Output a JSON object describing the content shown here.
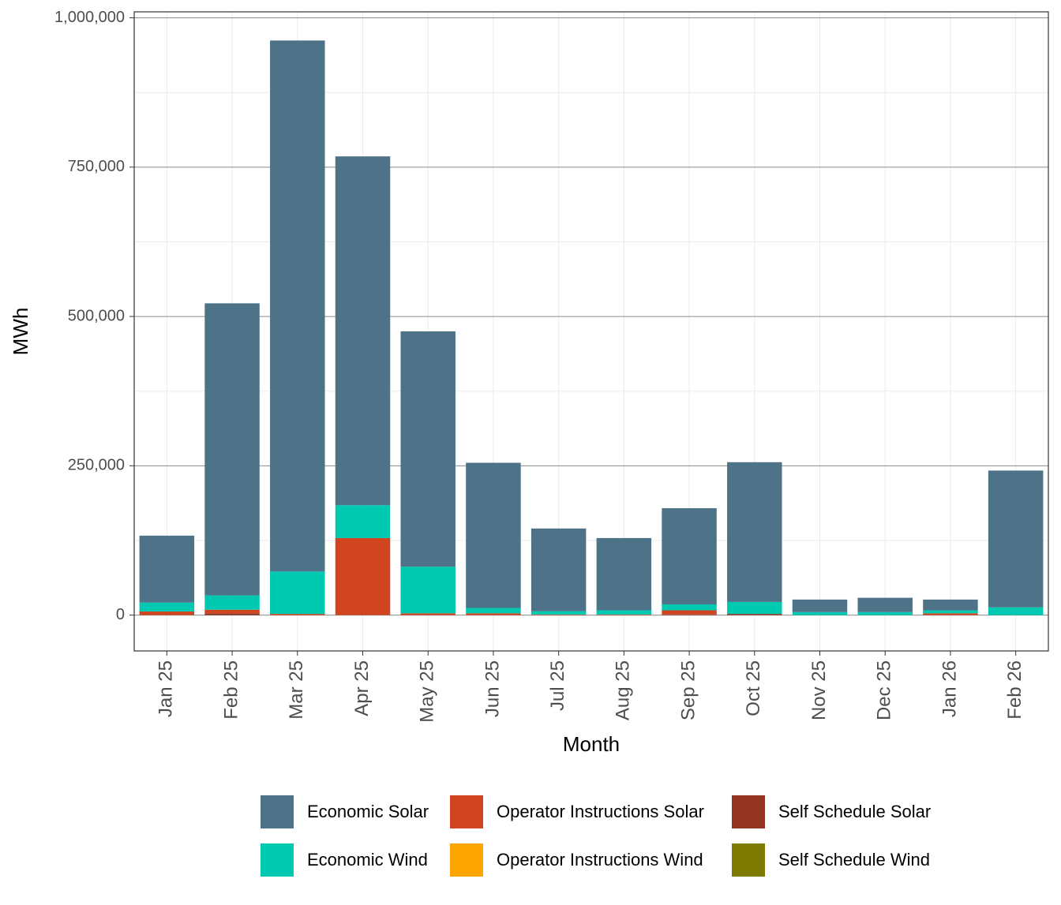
{
  "chart_data": {
    "type": "stacked-bar",
    "x_label": "Month",
    "y_label": "MWh",
    "categories": [
      "Jan 25",
      "Feb 25",
      "Mar 25",
      "Apr 25",
      "May 25",
      "Jun 25",
      "Jul 25",
      "Aug 25",
      "Sep 25",
      "Oct 25",
      "Nov 25",
      "Dec 25",
      "Jan 26",
      "Feb 26"
    ],
    "series": [
      {
        "name": "Economic Solar",
        "color": "#4e7389",
        "values": [
          112000,
          489000,
          889000,
          584000,
          394000,
          243000,
          138500,
          121000,
          161000,
          234000,
          21000,
          24000,
          18000,
          229000
        ]
      },
      {
        "name": "Economic Wind",
        "color": "#00c9b1",
        "values": [
          15000,
          24000,
          71000,
          55000,
          78000,
          9000,
          5500,
          7000,
          10000,
          20000,
          5000,
          5000,
          5000,
          13000
        ]
      },
      {
        "name": "Operator Instructions Solar",
        "color": "#d04520",
        "values": [
          6000,
          6000,
          2000,
          129000,
          3000,
          3000,
          1000,
          1000,
          7000,
          0,
          0,
          0,
          3000,
          0
        ]
      },
      {
        "name": "Operator Instructions Wind",
        "color": "#ffa500",
        "values": [
          0,
          0,
          0,
          0,
          0,
          0,
          0,
          0,
          0,
          0,
          0,
          0,
          0,
          0
        ]
      },
      {
        "name": "Self Schedule Solar",
        "color": "#943522",
        "values": [
          0,
          3000,
          0,
          0,
          0,
          0,
          0,
          0,
          1000,
          2000,
          0,
          0,
          0,
          0
        ]
      },
      {
        "name": "Self Schedule Wind",
        "color": "#7f7a00",
        "values": [
          0,
          0,
          0,
          0,
          0,
          0,
          0,
          0,
          0,
          0,
          0,
          0,
          0,
          0
        ]
      }
    ],
    "ylim": [
      -60000,
      1010000
    ],
    "yticks": [
      0,
      {
        "value": 250000,
        "label": "250,000"
      },
      {
        "value": 500000,
        "label": "500,000"
      },
      {
        "value": 750000,
        "label": "750,000"
      },
      {
        "value": 1000000,
        "label": "1,000,000"
      }
    ],
    "grid": true,
    "legend_position": "bottom"
  }
}
